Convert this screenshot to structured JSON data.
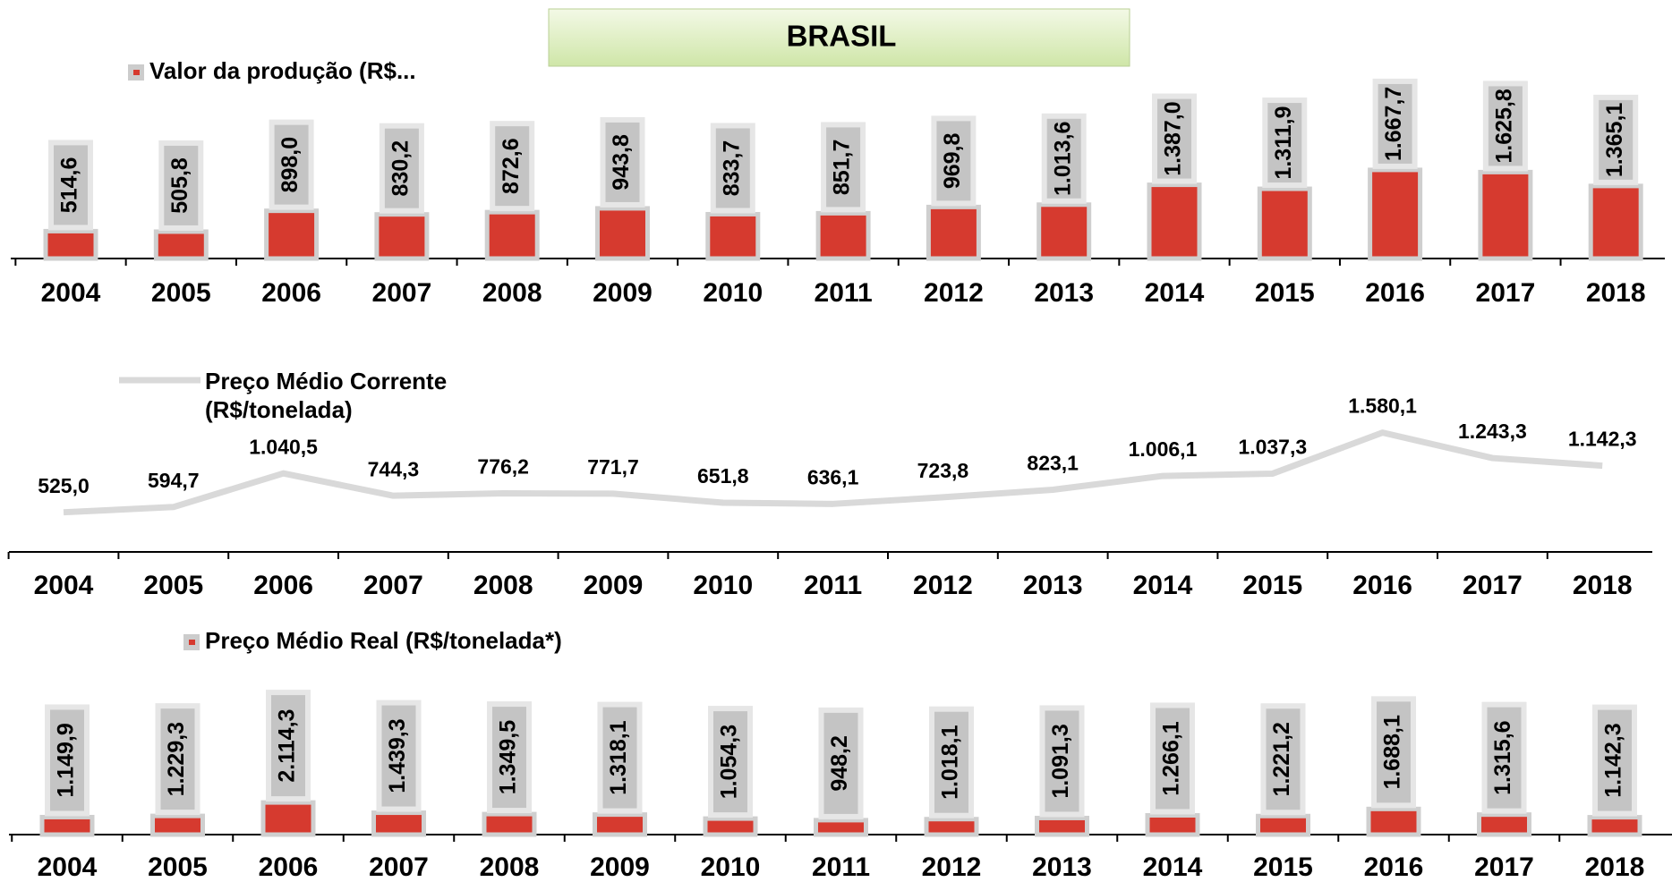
{
  "title": "BRASIL",
  "chart_data": [
    {
      "type": "bar",
      "categories": [
        "2004",
        "2005",
        "2006",
        "2007",
        "2008",
        "2009",
        "2010",
        "2011",
        "2012",
        "2013",
        "2014",
        "2015",
        "2016",
        "2017",
        "2018"
      ],
      "series": [
        {
          "name": "Valor da produção (R$...",
          "color": "#d63a2f",
          "values": [
            514.6,
            505.8,
            898.0,
            830.2,
            872.6,
            943.8,
            833.7,
            851.7,
            969.8,
            1013.6,
            1387.0,
            1311.9,
            1667.7,
            1625.8,
            1365.1
          ],
          "value_labels": [
            "514,6",
            "505,8",
            "898,0",
            "830,2",
            "872,6",
            "943,8",
            "833,7",
            "851,7",
            "969,8",
            "1.013,6",
            "1.387,0",
            "1.311,9",
            "1.667,7",
            "1.625,8",
            "1.365,1"
          ]
        }
      ]
    },
    {
      "type": "line",
      "categories": [
        "2004",
        "2005",
        "2006",
        "2007",
        "2008",
        "2009",
        "2010",
        "2011",
        "2012",
        "2013",
        "2014",
        "2015",
        "2016",
        "2017",
        "2018"
      ],
      "series": [
        {
          "name": "Preço Médio Corrente (R$/tonelada)",
          "color": "#d9d9d9",
          "values": [
            525.0,
            594.7,
            1040.5,
            744.3,
            776.2,
            771.7,
            651.8,
            636.1,
            723.8,
            823.1,
            1006.1,
            1037.3,
            1580.1,
            1243.3,
            1142.3
          ],
          "value_labels": [
            "525,0",
            "594,7",
            "1.040,5",
            "744,3",
            "776,2",
            "771,7",
            "651,8",
            "636,1",
            "723,8",
            "823,1",
            "1.006,1",
            "1.037,3",
            "1.580,1",
            "1.243,3",
            "1.142,3"
          ]
        }
      ]
    },
    {
      "type": "bar",
      "categories": [
        "2004",
        "2005",
        "2006",
        "2007",
        "2008",
        "2009",
        "2010",
        "2011",
        "2012",
        "2013",
        "2014",
        "2015",
        "2016",
        "2017",
        "2018"
      ],
      "series": [
        {
          "name": "Preço Médio Real (R$/tonelada*)",
          "color": "#d63a2f",
          "values": [
            1149.9,
            1229.3,
            2114.3,
            1439.3,
            1349.5,
            1318.1,
            1054.3,
            948.2,
            1018.1,
            1091.3,
            1266.1,
            1221.2,
            1688.1,
            1315.6,
            1142.3
          ],
          "value_labels": [
            "1.149,9",
            "1.229,3",
            "2.114,3",
            "1.439,3",
            "1.349,5",
            "1.318,1",
            "1.054,3",
            "948,2",
            "1.018,1",
            "1.091,3",
            "1.266,1",
            "1.221,2",
            "1.688,1",
            "1.315,6",
            "1.142,3"
          ]
        }
      ]
    }
  ]
}
